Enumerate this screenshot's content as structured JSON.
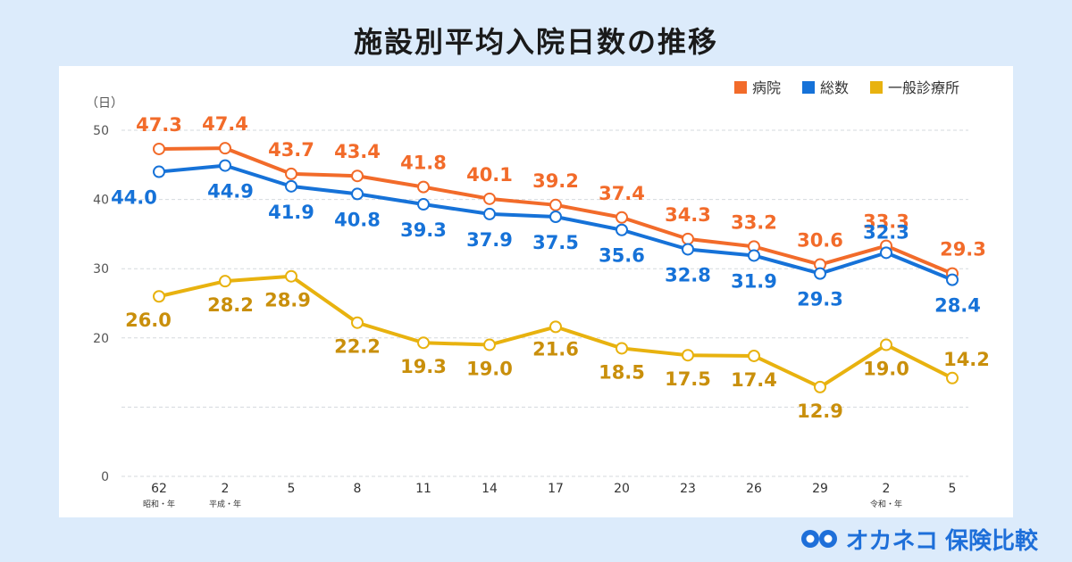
{
  "header": {
    "title": "施設別平均入院日数の推移"
  },
  "brand": {
    "name": "オカネコ",
    "suffix": "保険比較"
  },
  "colors": {
    "hospital": "#f26b2a",
    "total": "#1672d8",
    "clinic": "#e8b20f"
  },
  "chart_data": {
    "type": "line",
    "title": "施設別平均入院日数の推移",
    "ylabel": "（日）",
    "ylim": [
      0,
      50
    ],
    "yticks": [
      0,
      10,
      20,
      30,
      40,
      50
    ],
    "ytick_labels": [
      "0",
      "",
      "20",
      "30",
      "40",
      "50"
    ],
    "categories": [
      "62",
      "2",
      "5",
      "8",
      "11",
      "14",
      "17",
      "20",
      "23",
      "26",
      "29",
      "2",
      "5"
    ],
    "era_labels": [
      "昭和・年",
      "平成・年",
      "",
      "",
      "",
      "",
      "",
      "",
      "",
      "",
      "",
      "令和・年",
      ""
    ],
    "legend_position": "top-right",
    "grid": true,
    "series": [
      {
        "name": "病院",
        "color": "#f26b2a",
        "values": [
          47.3,
          47.4,
          43.7,
          43.4,
          41.8,
          40.1,
          39.2,
          37.4,
          34.3,
          33.2,
          30.6,
          33.3,
          29.3
        ],
        "labels": [
          "47.3",
          "47.4",
          "43.7",
          "43.4",
          "41.8",
          "40.1",
          "39.2",
          "37.4",
          "34.3",
          "33.2",
          "30.6",
          "33.3",
          "29.3"
        ]
      },
      {
        "name": "総数",
        "color": "#1672d8",
        "values": [
          44.0,
          44.9,
          41.9,
          40.8,
          39.3,
          37.9,
          37.5,
          35.6,
          32.8,
          31.9,
          29.3,
          32.3,
          28.4
        ],
        "labels": [
          "44.0",
          "44.9",
          "41.9",
          "40.8",
          "39.3",
          "37.9",
          "37.5",
          "35.6",
          "32.8",
          "31.9",
          "29.3",
          "32.3",
          "28.4"
        ]
      },
      {
        "name": "一般診療所",
        "color": "#e8b20f",
        "values": [
          26.0,
          28.2,
          28.9,
          22.2,
          19.3,
          19.0,
          21.6,
          18.5,
          17.5,
          17.4,
          12.9,
          19.0,
          14.2
        ],
        "labels": [
          "26.0",
          "28.2",
          "28.9",
          "22.2",
          "19.3",
          "19.0",
          "21.6",
          "18.5",
          "17.5",
          "17.4",
          "12.9",
          "19.0",
          "14.2"
        ]
      }
    ]
  }
}
